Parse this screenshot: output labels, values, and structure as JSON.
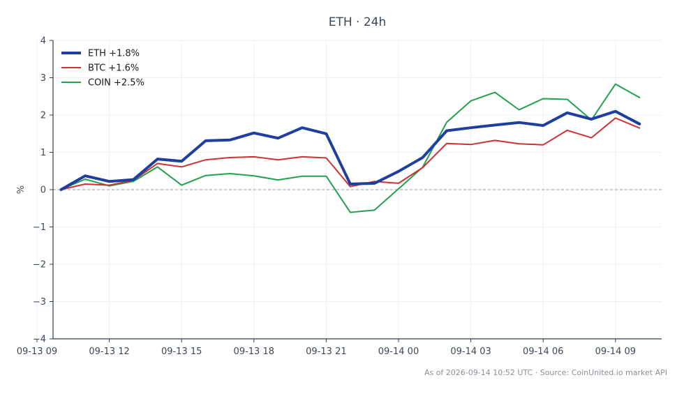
{
  "chart_data": {
    "type": "line",
    "title": "ETH · 24h",
    "ylabel": "%",
    "xlabel": "",
    "ylim": [
      -4,
      4
    ],
    "yticks": [
      -4,
      -3,
      -2,
      -1,
      0,
      1,
      2,
      3,
      4
    ],
    "ytick_labels": [
      "−4",
      "−3",
      "−2",
      "−1",
      "0",
      "1",
      "2",
      "3",
      "4"
    ],
    "xlim": [
      "2026-09-13 09:40",
      "2026-09-14 10:55"
    ],
    "x_ticks": [
      {
        "at": "2026-09-13 09:00",
        "label": "09-13 09"
      },
      {
        "at": "2026-09-13 12:00",
        "label": "09-13 12"
      },
      {
        "at": "2026-09-13 15:00",
        "label": "09-13 15"
      },
      {
        "at": "2026-09-13 18:00",
        "label": "09-13 18"
      },
      {
        "at": "2026-09-13 21:00",
        "label": "09-13 21"
      },
      {
        "at": "2026-09-14 00:00",
        "label": "09-14 00"
      },
      {
        "at": "2026-09-14 03:00",
        "label": "09-14 03"
      },
      {
        "at": "2026-09-14 06:00",
        "label": "09-14 06"
      },
      {
        "at": "2026-09-14 09:00",
        "label": "09-14 09"
      }
    ],
    "x": [
      "2026-09-13 10:00",
      "2026-09-13 11:00",
      "2026-09-13 12:00",
      "2026-09-13 13:00",
      "2026-09-13 14:00",
      "2026-09-13 15:00",
      "2026-09-13 16:00",
      "2026-09-13 17:00",
      "2026-09-13 18:00",
      "2026-09-13 19:00",
      "2026-09-13 20:00",
      "2026-09-13 21:00",
      "2026-09-13 22:00",
      "2026-09-13 23:00",
      "2026-09-14 00:00",
      "2026-09-14 01:00",
      "2026-09-14 02:00",
      "2026-09-14 03:00",
      "2026-09-14 04:00",
      "2026-09-14 05:00",
      "2026-09-14 06:00",
      "2026-09-14 07:00",
      "2026-09-14 08:00",
      "2026-09-14 09:00",
      "2026-09-14 10:00"
    ],
    "series": [
      {
        "name": "ETH +1.8%",
        "color": "#1f3fa0",
        "values": [
          0.0,
          0.37,
          0.22,
          0.27,
          0.82,
          0.76,
          1.31,
          1.33,
          1.52,
          1.38,
          1.66,
          1.5,
          0.15,
          0.17,
          0.49,
          0.86,
          1.58,
          1.66,
          1.73,
          1.8,
          1.72,
          2.06,
          1.89,
          2.1,
          1.76
        ]
      },
      {
        "name": "BTC +1.6%",
        "color": "#d03030",
        "values": [
          0.0,
          0.15,
          0.12,
          0.25,
          0.7,
          0.61,
          0.8,
          0.86,
          0.88,
          0.8,
          0.88,
          0.85,
          0.08,
          0.22,
          0.17,
          0.59,
          1.24,
          1.21,
          1.32,
          1.23,
          1.2,
          1.59,
          1.39,
          1.92,
          1.65
        ]
      },
      {
        "name": "COIN +2.5%",
        "color": "#22a04b",
        "values": [
          0.0,
          0.28,
          0.1,
          0.22,
          0.61,
          0.12,
          0.38,
          0.43,
          0.37,
          0.26,
          0.36,
          0.36,
          -0.61,
          -0.55,
          0.02,
          0.6,
          1.81,
          2.38,
          2.61,
          2.14,
          2.44,
          2.42,
          1.87,
          2.83,
          2.47
        ]
      }
    ],
    "zero_line": true,
    "grid": true,
    "legend_position": "top-left"
  },
  "footer": {
    "note": "As of 2026-09-14 10:52 UTC · Source: CoinUnited.io market API"
  },
  "colors": {
    "axis": "#2f3e4f",
    "grid": "#eceff3",
    "zero_line": "#8f9bb3",
    "title": "#3c4858",
    "tick_label": "#3c4858",
    "footer": "#8a8f99"
  }
}
